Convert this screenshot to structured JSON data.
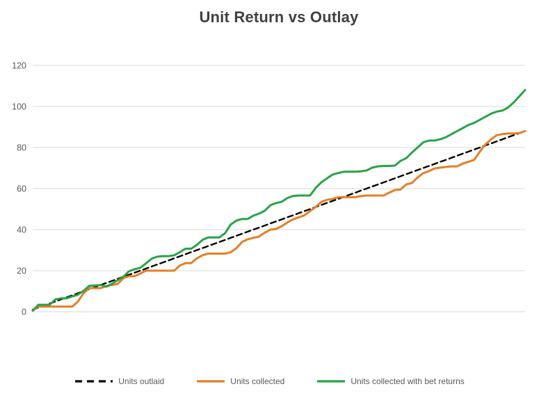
{
  "title": "Unit Return vs Outlay",
  "colors": {
    "title_text": "#404040",
    "axis_labels": "#595959",
    "gridline": "#D9D9D9",
    "outlaid": "#000000",
    "collected": "#E57E25",
    "with_returns": "#27A445"
  },
  "chart_data": {
    "type": "line",
    "title": "Unit Return vs Outlay",
    "xlabel": "",
    "ylabel": "",
    "x_count": 88,
    "ylim": [
      0,
      120
    ],
    "yticks": [
      0,
      20,
      40,
      60,
      80,
      100,
      120
    ],
    "grid": true,
    "legend_position": "bottom",
    "series": [
      {
        "name": "Units outlaid",
        "color": "#000000",
        "style": "dashed",
        "values": [
          1,
          2,
          3,
          4,
          5,
          6,
          7,
          8,
          9,
          10,
          11,
          12,
          13,
          14,
          15,
          16,
          17,
          18,
          19,
          20,
          21,
          22,
          23,
          24,
          25,
          26,
          27,
          28,
          29,
          30,
          31,
          32,
          33,
          34,
          35,
          36,
          37,
          38,
          39,
          40,
          41,
          42,
          43,
          44,
          45,
          46,
          47,
          48,
          49,
          50,
          51,
          52,
          53,
          54,
          55,
          56,
          57,
          58,
          59,
          60,
          61,
          62,
          63,
          64,
          65,
          66,
          67,
          68,
          69,
          70,
          71,
          72,
          73,
          74,
          75,
          76,
          77,
          78,
          79,
          80,
          81,
          82,
          83,
          84,
          85,
          86,
          87,
          88
        ]
      },
      {
        "name": "Units collected",
        "color": "#E57E25",
        "style": "solid",
        "values": [
          0.5,
          2.5,
          2.5,
          2.5,
          2.5,
          2.5,
          2.5,
          2.5,
          5,
          9,
          11.5,
          11.5,
          11.5,
          12.5,
          13,
          13.5,
          16.3,
          17.3,
          17.3,
          18.6,
          20,
          20,
          20,
          20,
          20,
          20,
          22.5,
          23.7,
          23.7,
          26,
          27.5,
          28.3,
          28.3,
          28.3,
          28.3,
          29,
          31,
          34,
          35.3,
          36,
          36.6,
          38.5,
          40,
          40.3,
          41.7,
          43.5,
          45,
          46,
          47,
          49,
          51,
          53.5,
          54.5,
          55,
          55.8,
          55.8,
          55.8,
          55.8,
          56.3,
          56.6,
          56.6,
          56.6,
          56.6,
          58,
          59.3,
          59.6,
          62,
          62.7,
          65.4,
          67.5,
          68.5,
          69.8,
          70.2,
          70.5,
          70.8,
          70.8,
          72.2,
          73,
          74,
          78,
          81.5,
          84,
          86,
          86.5,
          86.8,
          86.8,
          87,
          88
        ]
      },
      {
        "name": "Units collected with bet returns",
        "color": "#27A445",
        "style": "solid",
        "values": [
          0.5,
          3.4,
          3.4,
          3.4,
          6,
          6.5,
          6.5,
          7.5,
          8.3,
          10.2,
          12.6,
          12.8,
          13,
          12.2,
          13.6,
          15.3,
          17,
          19.7,
          20.7,
          21.4,
          23.5,
          25.8,
          26.8,
          27.1,
          27.1,
          27.5,
          29,
          30.7,
          30.7,
          32.5,
          35,
          36.2,
          36.2,
          36.2,
          38.3,
          42.5,
          44.4,
          45.2,
          45.2,
          46.8,
          47.8,
          49.2,
          51.9,
          52.9,
          53.6,
          55.4,
          56.4,
          56.6,
          56.6,
          56.6,
          60.3,
          63,
          65,
          66.8,
          67.6,
          68.2,
          68.2,
          68.2,
          68.4,
          68.8,
          70.2,
          70.8,
          71,
          71,
          71.2,
          73.5,
          74.8,
          77.5,
          80,
          82.5,
          83.4,
          83.4,
          84,
          85,
          86.5,
          88,
          89.5,
          91,
          92,
          93.5,
          95,
          96.5,
          97.5,
          98,
          99.5,
          102,
          105,
          108
        ]
      }
    ]
  },
  "legend": {
    "items": [
      {
        "label": "Units outlaid"
      },
      {
        "label": "Units collected"
      },
      {
        "label": "Units collected with bet returns"
      }
    ]
  }
}
